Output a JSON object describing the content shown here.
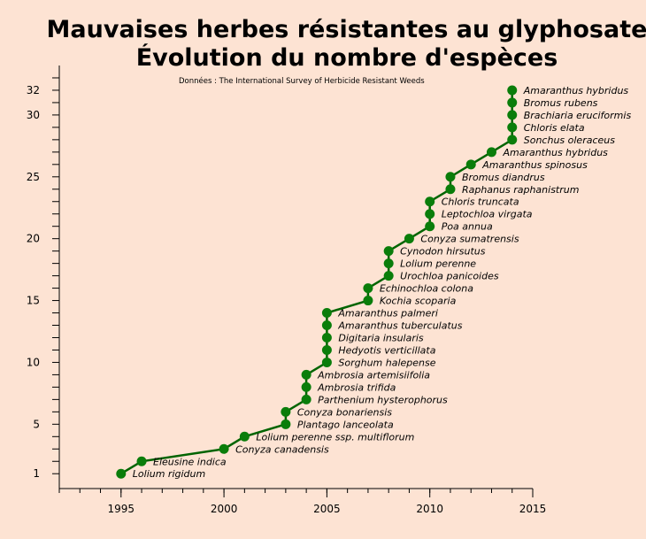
{
  "chart_data": {
    "type": "line",
    "title": "Mauvaises herbes résistantes au glyphosate",
    "subtitle": "Évolution du nombre d'espèces",
    "source": "Données : The  International Survey of Herbicide Resistant Weeds",
    "xlabel": "",
    "ylabel": "",
    "xlim": [
      1992,
      2015
    ],
    "ylim": [
      -0.2,
      34
    ],
    "x_ticks": [
      1995,
      2000,
      2005,
      2010,
      2015
    ],
    "y_ticks": [
      1,
      5,
      10,
      15,
      20,
      25,
      30,
      32
    ],
    "grid": false,
    "line_color": "#006400",
    "marker_color": "#0A7D0A",
    "points": [
      {
        "x": 1995,
        "y": 1,
        "label": "Lolium rigidum"
      },
      {
        "x": 1996,
        "y": 2,
        "label": "Eleusine indica"
      },
      {
        "x": 2000,
        "y": 3,
        "label": "Conyza canadensis"
      },
      {
        "x": 2001,
        "y": 4,
        "label": "Lolium perenne ssp. multiflorum"
      },
      {
        "x": 2003,
        "y": 5,
        "label": "Plantago lanceolata"
      },
      {
        "x": 2003,
        "y": 6,
        "label": "Conyza bonariensis"
      },
      {
        "x": 2004,
        "y": 7,
        "label": "Parthenium hysterophorus"
      },
      {
        "x": 2004,
        "y": 8,
        "label": "Ambrosia trifida"
      },
      {
        "x": 2004,
        "y": 9,
        "label": "Ambrosia artemisiifolia"
      },
      {
        "x": 2005,
        "y": 10,
        "label": "Sorghum halepense"
      },
      {
        "x": 2005,
        "y": 11,
        "label": "Hedyotis verticillata"
      },
      {
        "x": 2005,
        "y": 12,
        "label": "Digitaria insularis"
      },
      {
        "x": 2005,
        "y": 13,
        "label": "Amaranthus tuberculatus"
      },
      {
        "x": 2005,
        "y": 14,
        "label": "Amaranthus palmeri"
      },
      {
        "x": 2007,
        "y": 15,
        "label": "Kochia scoparia"
      },
      {
        "x": 2007,
        "y": 16,
        "label": "Echinochloa colona"
      },
      {
        "x": 2008,
        "y": 17,
        "label": "Urochloa panicoides"
      },
      {
        "x": 2008,
        "y": 18,
        "label": "Lolium perenne"
      },
      {
        "x": 2008,
        "y": 19,
        "label": "Cynodon hirsutus"
      },
      {
        "x": 2009,
        "y": 20,
        "label": "Conyza sumatrensis"
      },
      {
        "x": 2010,
        "y": 21,
        "label": "Poa annua"
      },
      {
        "x": 2010,
        "y": 22,
        "label": "Leptochloa virgata"
      },
      {
        "x": 2010,
        "y": 23,
        "label": "Chloris truncata"
      },
      {
        "x": 2011,
        "y": 24,
        "label": "Raphanus raphanistrum"
      },
      {
        "x": 2011,
        "y": 25,
        "label": "Bromus diandrus"
      },
      {
        "x": 2012,
        "y": 26,
        "label": "Amaranthus spinosus"
      },
      {
        "x": 2013,
        "y": 27,
        "label": "Amaranthus hybridus"
      },
      {
        "x": 2014,
        "y": 28,
        "label": "Sonchus oleraceus"
      },
      {
        "x": 2014,
        "y": 29,
        "label": "Chloris elata"
      },
      {
        "x": 2014,
        "y": 30,
        "label": "Brachiaria eruciformis"
      },
      {
        "x": 2014,
        "y": 31,
        "label": "Bromus rubens"
      },
      {
        "x": 2014,
        "y": 32,
        "label": "Amaranthus hybridus"
      }
    ]
  }
}
